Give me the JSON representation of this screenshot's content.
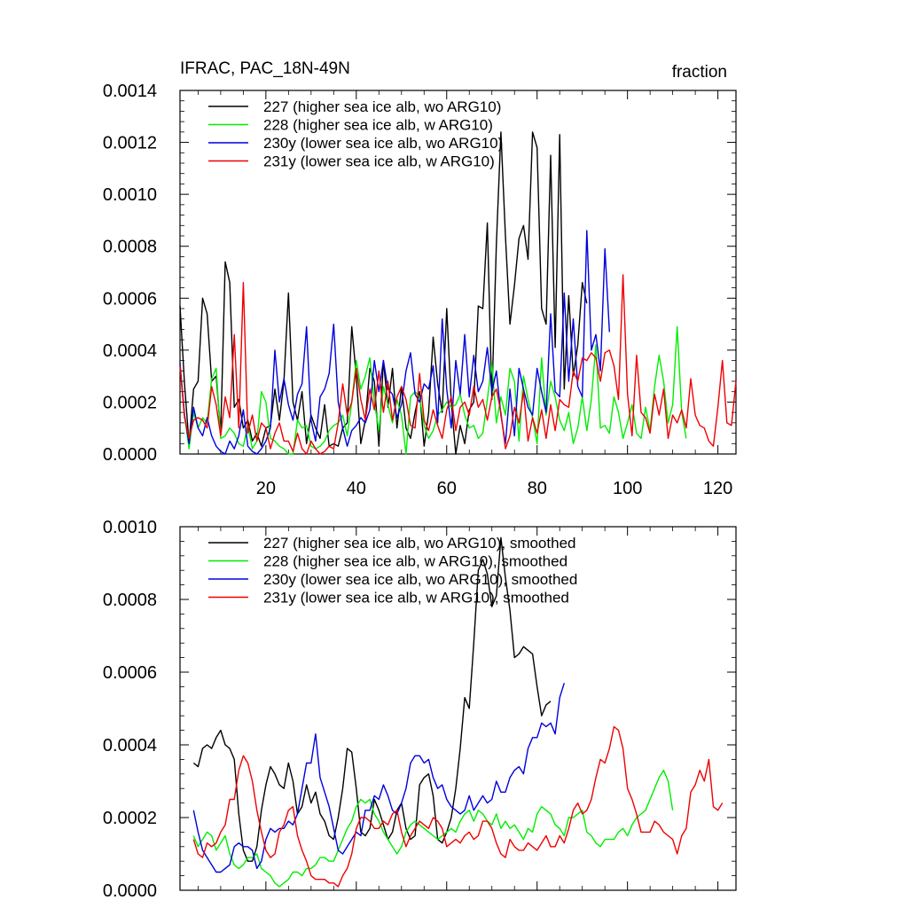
{
  "colors": {
    "227": "#000000",
    "228": "#00ee00",
    "230y": "#0000dd",
    "231y": "#ee0000"
  },
  "chart_data": [
    {
      "type": "line",
      "title": "IFRAC, PAC_18N-49N",
      "right_title": "fraction",
      "ylim": [
        0,
        0.0014
      ],
      "xlim": [
        1,
        124
      ],
      "xticks": [
        20,
        40,
        60,
        80,
        100,
        120
      ],
      "yticks": [
        "0.0000",
        "0.0002",
        "0.0004",
        "0.0006",
        "0.0008",
        "0.0010",
        "0.0012",
        "0.0014"
      ],
      "legend_position": "top-left",
      "series": [
        {
          "key": "227",
          "name": "227 (higher sea ice alb, wo ARG10)",
          "x_start": 1,
          "values": [
            0.00057,
            0.00027,
            4e-05,
            0.00025,
            0.00028,
            0.0006,
            0.00054,
            0.00028,
            0.0003,
            8e-05,
            0.00074,
            0.00066,
            0.00018,
            0.00021,
            0.0001,
            0.00013,
            5e-05,
            8e-05,
            3e-05,
            0.0001,
            0.00011,
            0.00025,
            0.00013,
            0.00028,
            0.00062,
            0.0002,
            0.00013,
            0.00024,
            4e-05,
            0.00015,
            0.0001,
            6e-05,
            0.00019,
            3e-05,
            4e-05,
            3e-05,
            0.0001,
            0.00012,
            0.00049,
            0.0003,
            4e-05,
            0.00013,
            0.00033,
            0.00028,
            3e-05,
            0.00036,
            0.00018,
            0.00033,
            0.0001,
            0.00026,
            0.0001,
            6e-05,
            0.00016,
            0.00024,
            3e-05,
            0.00016,
            0.00045,
            0.00027,
            0.00016,
            0.00056,
            0.0002,
            0.0,
            0.00011,
            4e-05,
            0.00017,
            0.0002,
            0.00057,
            0.00056,
            0.00089,
            0.00021,
            0.00081,
            0.00124,
            0.00084,
            0.0005,
            0.00065,
            0.00083,
            0.00088,
            0.00075,
            0.00124,
            0.00118,
            0.00056,
            0.0005,
            0.00115,
            0.00041,
            0.00123,
            0.00025,
            0.00061,
            0.0003,
            0.00042,
            0.00066,
            0.00058
          ]
        },
        {
          "key": "228",
          "name": "228 (higher sea ice alb, w ARG10)",
          "x_start": 1,
          "values": [
            0.00034,
            0.00015,
            2e-05,
            0.00016,
            0.0001,
            0.00014,
            0.00012,
            0.00029,
            0.00033,
            6e-05,
            7e-05,
            0.0001,
            8e-05,
            4e-05,
            3e-05,
            0.00011,
            2e-05,
            5e-05,
            0.00024,
            0.0002,
            6e-05,
            5e-05,
            3e-05,
            2e-05,
            0.0,
            0.0,
            0.00013,
            0.0001,
            0.00011,
            3e-05,
            2e-05,
            3e-05,
            5e-05,
            9e-05,
            0.00011,
            0.00012,
            0.00015,
            7e-05,
            0.0002,
            0.00036,
            0.00025,
            0.0003,
            0.00037,
            0.0002,
            9e-05,
            0.00026,
            0.00019,
            0.00012,
            0.00021,
            0.00015,
            0.0,
            0.00022,
            0.00024,
            0.00022,
            0.00011,
            6e-05,
            9e-05,
            0.00015,
            0.00017,
            0.0002,
            0.00018,
            0.00019,
            0.00023,
            0.00015,
            0.0001,
            0.00011,
            6e-05,
            8e-05,
            0.00021,
            0.00035,
            0.00012,
            0.00022,
            0.00015,
            0.00033,
            0.00028,
            5e-05,
            0.0003,
            0.00021,
            0.00014,
            4e-05,
            0.00037,
            0.00015,
            0.00028,
            0.00022,
            0.00013,
            9e-05,
            0.00016,
            4e-05,
            0.0001,
            0.00022,
            9e-05,
            0.00021,
            0.00042,
            0.0001,
            0.00011,
            8e-05,
            0.00022,
            0.00016,
            6e-05,
            0.00012,
            0.00019,
            8e-05,
            6e-05,
            0.00018,
            9e-05,
            0.00026,
            0.00038,
            0.00028,
            0.00012,
            0.00019,
            0.00049,
            0.00016,
            6e-05
          ]
        },
        {
          "key": "230y",
          "name": "230y (lower sea ice alb, wo ARG10)",
          "x_start": 1,
          "values": [
            0.00035,
            0.00015,
            4e-05,
            0.00018,
            0.0001,
            7e-05,
            0.00014,
            7e-05,
            3e-05,
            1e-05,
            0.0,
            5e-05,
            2e-05,
            7e-05,
            0.00017,
            3e-05,
            1e-05,
            0.0,
            2e-05,
            5e-05,
            0.0001,
            0.0004,
            0.0002,
            0.00029,
            0.00019,
            0.00013,
            0.00023,
            0.00027,
            0.00049,
            0.00013,
            5e-05,
            0.00022,
            0.00025,
            0.00031,
            0.0005,
            0.0002,
            0.0001,
            3e-05,
            9e-05,
            0.00011,
            0.00014,
            0.00012,
            0.00017,
            0.00036,
            0.00024,
            0.00036,
            0.00025,
            0.00023,
            0.00014,
            0.00019,
            0.00032,
            0.00039,
            0.00023,
            0.0002,
            0.00027,
            0.00025,
            0.00034,
            0.00012,
            0.00052,
            0.00025,
            0.0001,
            0.00036,
            0.00023,
            0.00046,
            0.00022,
            0.00038,
            0.00024,
            0.00028,
            0.00041,
            0.00024,
            0.00032,
            0.00015,
            4e-05,
            0.00025,
            7e-05,
            0.00033,
            0.00025,
            0.00018,
            0.00015,
            0.00033,
            0.00024,
            0.00016,
            0.00054,
            0.00024,
            0.00022,
            0.00062,
            0.00028,
            0.00052,
            0.00026,
            0.00022,
            0.00086,
            0.0004,
            0.00046,
            0.00032,
            0.00079,
            0.00047
          ]
        },
        {
          "key": "231y",
          "name": "231y (lower sea ice alb, w ARG10)",
          "x_start": 1,
          "values": [
            0.00034,
            0.00014,
            6e-05,
            0.00013,
            0.00014,
            0.00013,
            0.0001,
            0.00026,
            0.00019,
            7e-05,
            0.00022,
            0.00014,
            0.00046,
            0.0001,
            0.00066,
            8e-05,
            0.00015,
            5e-05,
            0.00012,
            0.0001,
            2e-05,
            8e-05,
            0.00012,
            5e-05,
            5e-05,
            1e-05,
            8e-05,
            2e-05,
            0.0,
            5e-05,
            2e-05,
            0.0,
            1e-05,
            3e-05,
            2e-05,
            0.00012,
            0.00027,
            0.00015,
            0.0002,
            0.00033,
            0.00021,
            0.00013,
            0.00025,
            0.00017,
            0.00032,
            0.00016,
            0.00028,
            0.00013,
            0.00022,
            0.00026,
            0.00021,
            0.00011,
            0.0001,
            0.00031,
            0.00013,
            9e-05,
            0.00017,
            0.00011,
            6e-05,
            0.00017,
            0.00022,
            9e-05,
            0.00018,
            0.0002,
            0.00015,
            0.00026,
            0.00018,
            0.00021,
            0.00013,
            0.00022,
            0.00025,
            0.00016,
            2e-05,
            7e-05,
            0.00018,
            0.00012,
            0.00024,
            5e-05,
            0.00014,
            8e-05,
            0.00017,
            6e-05,
            0.00019,
            9e-05,
            0.00021,
            0.00019,
            0.00018,
            0.00032,
            0.00028,
            0.00037,
            0.00036,
            0.00039,
            0.00037,
            0.00028,
            0.00039,
            0.0004,
            0.00034,
            0.00021,
            0.00069,
            0.00023,
            7e-05,
            0.00038,
            0.00016,
            0.00014,
            8e-05,
            0.00023,
            0.00015,
            0.00025,
            6e-05,
            0.00015,
            0.00012,
            0.00017,
            0.0001,
            0.00029,
            0.00015,
            0.00011,
            0.0001,
            5e-05,
            3e-05,
            0.00018,
            0.00036,
            0.00012,
            0.00011,
            0.00028
          ]
        }
      ]
    },
    {
      "type": "line",
      "ylim": [
        0,
        0.001
      ],
      "xlim": [
        1,
        124
      ],
      "yticks": [
        "0.0000",
        "0.0002",
        "0.0004",
        "0.0006",
        "0.0008",
        "0.0010"
      ],
      "legend_position": "top-left",
      "series": [
        {
          "key": "227",
          "name": "227 (higher sea ice alb, wo ARG10), smoothed",
          "x_start": 4,
          "values": [
            0.00035,
            0.00034,
            0.00039,
            0.0004,
            0.00039,
            0.00042,
            0.00044,
            0.0004,
            0.00039,
            0.00036,
            0.00021,
            0.00011,
            8e-05,
            8e-05,
            0.00012,
            0.00022,
            0.00029,
            0.00034,
            0.00032,
            0.00029,
            0.00028,
            0.00035,
            0.0003,
            0.00021,
            0.00023,
            0.00029,
            0.00024,
            0.00027,
            0.00021,
            0.00019,
            0.00015,
            0.00014,
            0.0002,
            0.00028,
            0.00039,
            0.00038,
            0.00028,
            0.00016,
            0.00015,
            0.00017,
            0.00025,
            0.00022,
            0.00018,
            0.00014,
            0.00016,
            0.00022,
            0.00024,
            0.00017,
            0.00014,
            0.00015,
            0.00029,
            0.00031,
            0.00032,
            0.00026,
            0.00014,
            0.00013,
            0.00016,
            0.0002,
            0.00028,
            0.00039,
            0.00053,
            0.0005,
            0.00068,
            0.00088,
            0.00091,
            0.00087,
            0.00078,
            0.00081,
            0.00097,
            0.00086,
            0.00077,
            0.00064,
            0.00065,
            0.00067,
            0.00066,
            0.00065,
            0.00056,
            0.00048,
            0.00051,
            0.00052
          ]
        },
        {
          "key": "228",
          "name": "228 (higher sea ice alb, w ARG10), smoothed",
          "x_start": 4,
          "values": [
            0.00015,
            0.00012,
            0.00014,
            0.00016,
            0.00015,
            0.00011,
            0.00013,
            0.00015,
            0.0001,
            7e-05,
            6e-05,
            7e-05,
            9e-05,
            9e-05,
            0.0001,
            6e-05,
            5e-05,
            4e-05,
            2e-05,
            1e-05,
            2e-05,
            3e-05,
            5e-05,
            5e-05,
            4e-05,
            6e-05,
            6e-05,
            7e-05,
            9e-05,
            9e-05,
            8e-05,
            8e-05,
            0.00011,
            0.00014,
            0.00017,
            0.00019,
            0.00023,
            0.00025,
            0.00024,
            0.00025,
            0.00021,
            0.00019,
            0.00016,
            0.00014,
            0.00012,
            0.0001,
            0.00012,
            0.00016,
            0.00018,
            0.00019,
            0.00018,
            0.00017,
            0.00016,
            0.00015,
            0.00014,
            0.00015,
            0.00016,
            0.00017,
            0.00016,
            0.00019,
            0.00021,
            0.00022,
            0.00019,
            0.00022,
            0.00021,
            0.00019,
            0.00018,
            0.00021,
            0.00017,
            0.00019,
            0.00017,
            0.00018,
            0.00016,
            0.00014,
            0.00017,
            0.00016,
            0.00021,
            0.00023,
            0.00022,
            0.00021,
            0.00018,
            0.00017,
            0.00015,
            0.0002,
            0.0002,
            0.00021,
            0.00022,
            0.00016,
            0.00015,
            0.00013,
            0.00012,
            0.00014,
            0.00014,
            0.00014,
            0.00016,
            0.00017,
            0.00015,
            0.00018,
            0.0002,
            0.00021,
            0.00022,
            0.00025,
            0.00028,
            0.00031,
            0.00033,
            0.0003,
            0.00022
          ]
        },
        {
          "key": "230y",
          "name": "230y (lower sea ice alb, wo ARG10), smoothed",
          "x_start": 4,
          "values": [
            0.00022,
            0.00016,
            0.00011,
            9e-05,
            7e-05,
            5e-05,
            5e-05,
            6e-05,
            7e-05,
            0.00012,
            0.00013,
            0.00012,
            0.00012,
            0.00011,
            6e-05,
            8e-05,
            0.00014,
            0.00017,
            0.00016,
            0.00017,
            0.00017,
            0.00019,
            0.00018,
            0.00021,
            0.00028,
            0.00035,
            0.00035,
            0.00043,
            0.00031,
            0.00027,
            0.00023,
            0.00017,
            0.00011,
            0.0001,
            0.00012,
            0.00014,
            0.00016,
            0.00015,
            0.00022,
            0.00022,
            0.00026,
            0.00025,
            0.00029,
            0.00026,
            0.00022,
            0.00021,
            0.00024,
            0.00028,
            0.00035,
            0.00037,
            0.00037,
            0.00035,
            0.00036,
            0.00031,
            0.00028,
            0.00029,
            0.00025,
            0.00023,
            0.00022,
            0.00021,
            0.00022,
            0.00026,
            0.00022,
            0.00024,
            0.00026,
            0.00024,
            0.00025,
            0.0003,
            0.00027,
            0.00027,
            0.00031,
            0.00033,
            0.00034,
            0.00032,
            0.00039,
            0.00042,
            0.00042,
            0.00046,
            0.00045,
            0.00046,
            0.00043,
            0.00053,
            0.00057
          ]
        },
        {
          "key": "231y",
          "name": "231y (lower sea ice alb, w ARG10), smoothed",
          "x_start": 4,
          "values": [
            0.00014,
            0.0001,
            9e-05,
            0.00013,
            0.00012,
            0.00013,
            0.00016,
            0.00018,
            0.00025,
            0.00025,
            0.00033,
            0.00037,
            0.00035,
            0.0003,
            0.00022,
            0.00016,
            0.00011,
            9e-05,
            0.0001,
            0.00016,
            0.00018,
            0.00022,
            0.00023,
            0.00015,
            0.00011,
            8e-05,
            4e-05,
            3e-05,
            3e-05,
            3e-05,
            2e-05,
            2e-05,
            1e-05,
            4e-05,
            6e-05,
            0.0001,
            0.00017,
            0.0002,
            0.0002,
            0.00019,
            0.00017,
            0.00017,
            0.00019,
            0.00018,
            0.00021,
            0.00022,
            0.00016,
            0.00012,
            0.00015,
            0.00017,
            0.00019,
            0.00018,
            0.00017,
            0.0002,
            0.00019,
            0.00017,
            0.00012,
            0.00013,
            0.00014,
            0.00013,
            0.00015,
            0.00016,
            0.00014,
            0.00015,
            0.00019,
            0.00019,
            0.00017,
            0.00013,
            0.0001,
            9e-05,
            0.00014,
            0.00012,
            0.00011,
            0.00011,
            0.00013,
            0.00012,
            0.00011,
            0.00013,
            0.00015,
            0.00012,
            0.00012,
            0.00015,
            0.00013,
            0.00017,
            0.00022,
            0.00024,
            0.00021,
            0.00022,
            0.00025,
            0.00031,
            0.00036,
            0.00035,
            0.00039,
            0.00045,
            0.00044,
            0.00039,
            0.00028,
            0.00025,
            0.00021,
            0.00016,
            0.00016,
            0.00016,
            0.00019,
            0.00018,
            0.00016,
            0.00015,
            0.00014,
            0.0001,
            0.00015,
            0.00017,
            0.00027,
            0.00029,
            0.00033,
            0.0003,
            0.00036,
            0.00023,
            0.00022,
            0.00024
          ]
        }
      ]
    }
  ]
}
